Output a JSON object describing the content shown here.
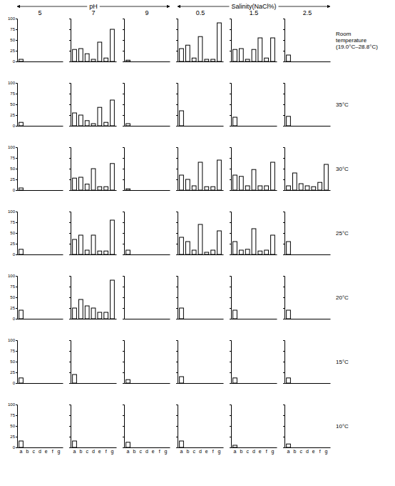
{
  "figure": {
    "groups": [
      {
        "label": "pH",
        "columns": [
          "5",
          "7",
          "9"
        ]
      },
      {
        "label": "Salinity(NaCl%)",
        "columns": [
          "0.5",
          "1.5",
          "2.5"
        ]
      }
    ],
    "rows": [
      "Room temperature (19.0°C–28.8°C)",
      "35°C",
      "30°C",
      "25°C",
      "20°C",
      "15°C",
      "10°C"
    ]
  },
  "chart_data": [
    {
      "type": "bar",
      "categories": [
        "a",
        "b",
        "c",
        "d",
        "e",
        "f",
        "g"
      ],
      "values": [
        5,
        0,
        0,
        0,
        0,
        0,
        0
      ],
      "color": "#000000",
      "ylim": [
        0,
        100
      ],
      "yticks": [
        0,
        25,
        50,
        75,
        100
      ],
      "tick_labels": "y"
    },
    {
      "type": "bar",
      "categories": [
        "a",
        "b",
        "c",
        "d",
        "e",
        "f",
        "g"
      ],
      "values": [
        28,
        30,
        18,
        5,
        45,
        8,
        75
      ],
      "color": "#000000",
      "ylim": [
        0,
        100
      ],
      "yticks": [
        0,
        25,
        50,
        75,
        100
      ],
      "tick_labels": false
    },
    {
      "type": "bar",
      "categories": [
        "a",
        "b",
        "c",
        "d",
        "e",
        "f",
        "g"
      ],
      "values": [
        3,
        0,
        0,
        0,
        0,
        0,
        0
      ],
      "color": "#000000",
      "ylim": [
        0,
        100
      ],
      "yticks": [
        0,
        25,
        50,
        75,
        100
      ],
      "tick_labels": false
    },
    {
      "type": "bar",
      "categories": [
        "a",
        "b",
        "c",
        "d",
        "e",
        "f",
        "g"
      ],
      "values": [
        30,
        38,
        8,
        58,
        5,
        5,
        90
      ],
      "color": "#000000",
      "ylim": [
        0,
        100
      ],
      "yticks": [
        0,
        25,
        50,
        75,
        100
      ],
      "tick_labels": false
    },
    {
      "type": "bar",
      "categories": [
        "a",
        "b",
        "c",
        "d",
        "e",
        "f",
        "g"
      ],
      "values": [
        28,
        30,
        5,
        28,
        55,
        8,
        55
      ],
      "color": "#000000",
      "ylim": [
        0,
        100
      ],
      "yticks": [
        0,
        25,
        50,
        75,
        100
      ],
      "tick_labels": false
    },
    {
      "type": "bar",
      "categories": [
        "a",
        "b",
        "c",
        "d",
        "e",
        "f",
        "g"
      ],
      "values": [
        15,
        0,
        0,
        0,
        0,
        0,
        0
      ],
      "color": "#000000",
      "ylim": [
        0,
        100
      ],
      "yticks": [
        0,
        25,
        50,
        75,
        100
      ],
      "tick_labels": false
    },
    {
      "type": "bar",
      "categories": [
        "a",
        "b",
        "c",
        "d",
        "e",
        "f",
        "g"
      ],
      "values": [
        8,
        0,
        0,
        0,
        0,
        0,
        0
      ],
      "color": "#000000",
      "ylim": [
        0,
        100
      ],
      "yticks": [
        0,
        25,
        50,
        75,
        100
      ],
      "tick_labels": "y"
    },
    {
      "type": "bar",
      "categories": [
        "a",
        "b",
        "c",
        "d",
        "e",
        "f",
        "g"
      ],
      "values": [
        30,
        25,
        12,
        5,
        43,
        8,
        60
      ],
      "color": "#000000",
      "ylim": [
        0,
        100
      ],
      "yticks": [
        0,
        25,
        50,
        75,
        100
      ],
      "tick_labels": false
    },
    {
      "type": "bar",
      "categories": [
        "a",
        "b",
        "c",
        "d",
        "e",
        "f",
        "g"
      ],
      "values": [
        5,
        0,
        0,
        0,
        0,
        0,
        0
      ],
      "color": "#000000",
      "ylim": [
        0,
        100
      ],
      "yticks": [
        0,
        25,
        50,
        75,
        100
      ],
      "tick_labels": false
    },
    {
      "type": "bar",
      "categories": [
        "a",
        "b",
        "c",
        "d",
        "e",
        "f",
        "g"
      ],
      "values": [
        35,
        0,
        0,
        0,
        0,
        0,
        0
      ],
      "color": "#000000",
      "ylim": [
        0,
        100
      ],
      "yticks": [
        0,
        25,
        50,
        75,
        100
      ],
      "tick_labels": false
    },
    {
      "type": "bar",
      "categories": [
        "a",
        "b",
        "c",
        "d",
        "e",
        "f",
        "g"
      ],
      "values": [
        20,
        0,
        0,
        0,
        0,
        0,
        0
      ],
      "color": "#000000",
      "ylim": [
        0,
        100
      ],
      "yticks": [
        0,
        25,
        50,
        75,
        100
      ],
      "tick_labels": false
    },
    {
      "type": "bar",
      "categories": [
        "a",
        "b",
        "c",
        "d",
        "e",
        "f",
        "g"
      ],
      "values": [
        22,
        0,
        0,
        0,
        0,
        0,
        0
      ],
      "color": "#000000",
      "ylim": [
        0,
        100
      ],
      "yticks": [
        0,
        25,
        50,
        75,
        100
      ],
      "tick_labels": false
    },
    {
      "type": "bar",
      "categories": [
        "a",
        "b",
        "c",
        "d",
        "e",
        "f",
        "g"
      ],
      "values": [
        5,
        0,
        0,
        0,
        0,
        0,
        0
      ],
      "color": "#000000",
      "ylim": [
        0,
        100
      ],
      "yticks": [
        0,
        25,
        50,
        75,
        100
      ],
      "tick_labels": "y"
    },
    {
      "type": "bar",
      "categories": [
        "a",
        "b",
        "c",
        "d",
        "e",
        "f",
        "g"
      ],
      "values": [
        28,
        30,
        14,
        50,
        8,
        8,
        62
      ],
      "color": "#000000",
      "ylim": [
        0,
        100
      ],
      "yticks": [
        0,
        25,
        50,
        75,
        100
      ],
      "tick_labels": false
    },
    {
      "type": "bar",
      "categories": [
        "a",
        "b",
        "c",
        "d",
        "e",
        "f",
        "g"
      ],
      "values": [
        3,
        0,
        0,
        0,
        0,
        0,
        0
      ],
      "color": "#000000",
      "ylim": [
        0,
        100
      ],
      "yticks": [
        0,
        25,
        50,
        75,
        100
      ],
      "tick_labels": false
    },
    {
      "type": "bar",
      "categories": [
        "a",
        "b",
        "c",
        "d",
        "e",
        "f",
        "g"
      ],
      "values": [
        35,
        25,
        10,
        65,
        8,
        8,
        70
      ],
      "color": "#000000",
      "ylim": [
        0,
        100
      ],
      "yticks": [
        0,
        25,
        50,
        75,
        100
      ],
      "tick_labels": false
    },
    {
      "type": "bar",
      "categories": [
        "a",
        "b",
        "c",
        "d",
        "e",
        "f",
        "g"
      ],
      "values": [
        35,
        32,
        10,
        48,
        10,
        10,
        65
      ],
      "color": "#000000",
      "ylim": [
        0,
        100
      ],
      "yticks": [
        0,
        25,
        50,
        75,
        100
      ],
      "tick_labels": false
    },
    {
      "type": "bar",
      "categories": [
        "a",
        "b",
        "c",
        "d",
        "e",
        "f",
        "g"
      ],
      "values": [
        10,
        40,
        15,
        10,
        8,
        18,
        60
      ],
      "color": "#000000",
      "ylim": [
        0,
        100
      ],
      "yticks": [
        0,
        25,
        50,
        75,
        100
      ],
      "tick_labels": false
    },
    {
      "type": "bar",
      "categories": [
        "a",
        "b",
        "c",
        "d",
        "e",
        "f",
        "g"
      ],
      "values": [
        12,
        0,
        0,
        0,
        0,
        0,
        0
      ],
      "color": "#000000",
      "ylim": [
        0,
        100
      ],
      "yticks": [
        0,
        25,
        50,
        75,
        100
      ],
      "tick_labels": "y"
    },
    {
      "type": "bar",
      "categories": [
        "a",
        "b",
        "c",
        "d",
        "e",
        "f",
        "g"
      ],
      "values": [
        35,
        45,
        10,
        45,
        8,
        8,
        80
      ],
      "color": "#000000",
      "ylim": [
        0,
        100
      ],
      "yticks": [
        0,
        25,
        50,
        75,
        100
      ],
      "tick_labels": false
    },
    {
      "type": "bar",
      "categories": [
        "a",
        "b",
        "c",
        "d",
        "e",
        "f",
        "g"
      ],
      "values": [
        10,
        0,
        0,
        0,
        0,
        0,
        0
      ],
      "color": "#000000",
      "ylim": [
        0,
        100
      ],
      "yticks": [
        0,
        25,
        50,
        75,
        100
      ],
      "tick_labels": false
    },
    {
      "type": "bar",
      "categories": [
        "a",
        "b",
        "c",
        "d",
        "e",
        "f",
        "g"
      ],
      "values": [
        40,
        30,
        10,
        70,
        5,
        10,
        55
      ],
      "color": "#000000",
      "ylim": [
        0,
        100
      ],
      "yticks": [
        0,
        25,
        50,
        75,
        100
      ],
      "tick_labels": false
    },
    {
      "type": "bar",
      "categories": [
        "a",
        "b",
        "c",
        "d",
        "e",
        "f",
        "g"
      ],
      "values": [
        30,
        10,
        12,
        60,
        8,
        10,
        45
      ],
      "color": "#000000",
      "ylim": [
        0,
        100
      ],
      "yticks": [
        0,
        25,
        50,
        75,
        100
      ],
      "tick_labels": false
    },
    {
      "type": "bar",
      "categories": [
        "a",
        "b",
        "c",
        "d",
        "e",
        "f",
        "g"
      ],
      "values": [
        30,
        0,
        0,
        0,
        0,
        0,
        0
      ],
      "color": "#000000",
      "ylim": [
        0,
        100
      ],
      "yticks": [
        0,
        25,
        50,
        75,
        100
      ],
      "tick_labels": false
    },
    {
      "type": "bar",
      "categories": [
        "a",
        "b",
        "c",
        "d",
        "e",
        "f",
        "g"
      ],
      "values": [
        20,
        0,
        0,
        0,
        0,
        0,
        0
      ],
      "color": "#000000",
      "ylim": [
        0,
        100
      ],
      "yticks": [
        0,
        25,
        50,
        75,
        100
      ],
      "tick_labels": "y"
    },
    {
      "type": "bar",
      "categories": [
        "a",
        "b",
        "c",
        "d",
        "e",
        "f",
        "g"
      ],
      "values": [
        25,
        45,
        30,
        25,
        15,
        15,
        90
      ],
      "color": "#000000",
      "ylim": [
        0,
        100
      ],
      "yticks": [
        0,
        25,
        50,
        75,
        100
      ],
      "tick_labels": false
    },
    {
      "type": "bar",
      "categories": [
        "a",
        "b",
        "c",
        "d",
        "e",
        "f",
        "g"
      ],
      "values": [
        0,
        0,
        0,
        0,
        0,
        0,
        0
      ],
      "color": "#000000",
      "ylim": [
        0,
        100
      ],
      "yticks": [
        0,
        25,
        50,
        75,
        100
      ],
      "tick_labels": false
    },
    {
      "type": "bar",
      "categories": [
        "a",
        "b",
        "c",
        "d",
        "e",
        "f",
        "g"
      ],
      "values": [
        25,
        0,
        0,
        0,
        0,
        0,
        0
      ],
      "color": "#000000",
      "ylim": [
        0,
        100
      ],
      "yticks": [
        0,
        25,
        50,
        75,
        100
      ],
      "tick_labels": false
    },
    {
      "type": "bar",
      "categories": [
        "a",
        "b",
        "c",
        "d",
        "e",
        "f",
        "g"
      ],
      "values": [
        20,
        0,
        0,
        0,
        0,
        0,
        0
      ],
      "color": "#000000",
      "ylim": [
        0,
        100
      ],
      "yticks": [
        0,
        25,
        50,
        75,
        100
      ],
      "tick_labels": false
    },
    {
      "type": "bar",
      "categories": [
        "a",
        "b",
        "c",
        "d",
        "e",
        "f",
        "g"
      ],
      "values": [
        20,
        0,
        0,
        0,
        0,
        0,
        0
      ],
      "color": "#000000",
      "ylim": [
        0,
        100
      ],
      "yticks": [
        0,
        25,
        50,
        75,
        100
      ],
      "tick_labels": false
    },
    {
      "type": "bar",
      "categories": [
        "a",
        "b",
        "c",
        "d",
        "e",
        "f",
        "g"
      ],
      "values": [
        12,
        0,
        0,
        0,
        0,
        0,
        0
      ],
      "color": "#000000",
      "ylim": [
        0,
        100
      ],
      "yticks": [
        0,
        25,
        50,
        75,
        100
      ],
      "tick_labels": "y"
    },
    {
      "type": "bar",
      "categories": [
        "a",
        "b",
        "c",
        "d",
        "e",
        "f",
        "g"
      ],
      "values": [
        20,
        0,
        0,
        0,
        0,
        0,
        0
      ],
      "color": "#000000",
      "ylim": [
        0,
        100
      ],
      "yticks": [
        0,
        25,
        50,
        75,
        100
      ],
      "tick_labels": false
    },
    {
      "type": "bar",
      "categories": [
        "a",
        "b",
        "c",
        "d",
        "e",
        "f",
        "g"
      ],
      "values": [
        8,
        0,
        0,
        0,
        0,
        0,
        0
      ],
      "color": "#000000",
      "ylim": [
        0,
        100
      ],
      "yticks": [
        0,
        25,
        50,
        75,
        100
      ],
      "tick_labels": false
    },
    {
      "type": "bar",
      "categories": [
        "a",
        "b",
        "c",
        "d",
        "e",
        "f",
        "g"
      ],
      "values": [
        15,
        0,
        0,
        0,
        0,
        0,
        0
      ],
      "color": "#000000",
      "ylim": [
        0,
        100
      ],
      "yticks": [
        0,
        25,
        50,
        75,
        100
      ],
      "tick_labels": false
    },
    {
      "type": "bar",
      "categories": [
        "a",
        "b",
        "c",
        "d",
        "e",
        "f",
        "g"
      ],
      "values": [
        12,
        0,
        0,
        0,
        0,
        0,
        0
      ],
      "color": "#000000",
      "ylim": [
        0,
        100
      ],
      "yticks": [
        0,
        25,
        50,
        75,
        100
      ],
      "tick_labels": false
    },
    {
      "type": "bar",
      "categories": [
        "a",
        "b",
        "c",
        "d",
        "e",
        "f",
        "g"
      ],
      "values": [
        12,
        0,
        0,
        0,
        0,
        0,
        0
      ],
      "color": "#000000",
      "ylim": [
        0,
        100
      ],
      "yticks": [
        0,
        25,
        50,
        75,
        100
      ],
      "tick_labels": false
    },
    {
      "type": "bar",
      "categories": [
        "a",
        "b",
        "c",
        "d",
        "e",
        "f",
        "g"
      ],
      "values": [
        15,
        0,
        0,
        0,
        0,
        0,
        0
      ],
      "color": "#000000",
      "ylim": [
        0,
        100
      ],
      "yticks": [
        0,
        25,
        50,
        75,
        100
      ]
    },
    {
      "type": "bar",
      "categories": [
        "a",
        "b",
        "c",
        "d",
        "e",
        "f",
        "g"
      ],
      "values": [
        15,
        0,
        0,
        0,
        0,
        0,
        0
      ],
      "color": "#000000",
      "ylim": [
        0,
        100
      ],
      "yticks": [
        0,
        25,
        50,
        75,
        100
      ],
      "tick_labels": "x"
    },
    {
      "type": "bar",
      "categories": [
        "a",
        "b",
        "c",
        "d",
        "e",
        "f",
        "g"
      ],
      "values": [
        12,
        0,
        0,
        0,
        0,
        0,
        0
      ],
      "color": "#000000",
      "ylim": [
        0,
        100
      ],
      "yticks": [
        0,
        25,
        50,
        75,
        100
      ],
      "tick_labels": "x"
    },
    {
      "type": "bar",
      "categories": [
        "a",
        "b",
        "c",
        "d",
        "e",
        "f",
        "g"
      ],
      "values": [
        15,
        0,
        0,
        0,
        0,
        0,
        0
      ],
      "color": "#000000",
      "ylim": [
        0,
        100
      ],
      "yticks": [
        0,
        25,
        50,
        75,
        100
      ],
      "tick_labels": "x"
    },
    {
      "type": "bar",
      "categories": [
        "a",
        "b",
        "c",
        "d",
        "e",
        "f",
        "g"
      ],
      "values": [
        5,
        0,
        0,
        0,
        0,
        0,
        0
      ],
      "color": "#000000",
      "ylim": [
        0,
        100
      ],
      "yticks": [
        0,
        25,
        50,
        75,
        100
      ],
      "tick_labels": "x"
    },
    {
      "type": "bar",
      "categories": [
        "a",
        "b",
        "c",
        "d",
        "e",
        "f",
        "g"
      ],
      "values": [
        8,
        0,
        0,
        0,
        0,
        0,
        0
      ],
      "color": "#000000",
      "ylim": [
        0,
        100
      ],
      "yticks": [
        0,
        25,
        50,
        75,
        100
      ],
      "tick_labels": "x"
    }
  ]
}
